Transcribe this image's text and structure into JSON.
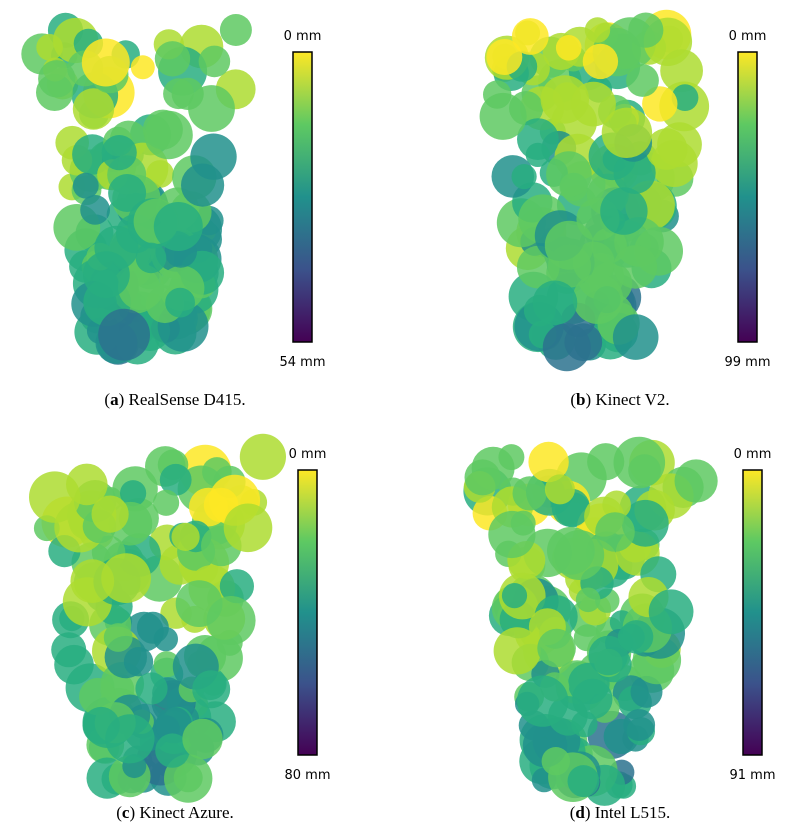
{
  "panels": [
    {
      "caption": {
        "prefix": "(",
        "label": "a",
        "suffix": ") RealSense D415."
      },
      "colorbar": {
        "top": "0 mm",
        "bottom": "54 mm"
      }
    },
    {
      "caption": {
        "prefix": "(",
        "label": "b",
        "suffix": ") Kinect V2."
      },
      "colorbar": {
        "top": "0 mm",
        "bottom": "99 mm"
      }
    },
    {
      "caption": {
        "prefix": "(",
        "label": "c",
        "suffix": ") Kinect Azure."
      },
      "colorbar": {
        "top": "0 mm",
        "bottom": "80 mm"
      }
    },
    {
      "caption": {
        "prefix": "(",
        "label": "d",
        "suffix": ") Intel L515."
      },
      "colorbar": {
        "top": "0 mm",
        "bottom": "91 mm"
      }
    }
  ]
}
